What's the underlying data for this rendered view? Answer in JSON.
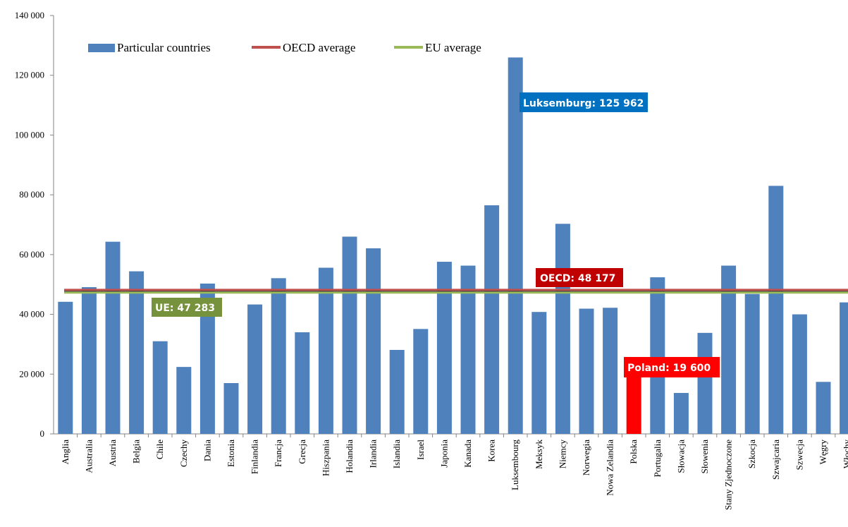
{
  "chart_data": {
    "type": "bar",
    "categories": [
      "Anglia",
      "Australia",
      "Austria",
      "Belgia",
      "Chile",
      "Czechy",
      "Dania",
      "Estonia",
      "Finlandia",
      "Francja",
      "Grecja",
      "Hiszpania",
      "Holandia",
      "Irlandia",
      "Islandia",
      "Israel",
      "Japonia",
      "Kanada",
      "Korea",
      "Luksembourg",
      "Meksyk",
      "Niemcy",
      "Norwegia",
      "Nowa Zelandia",
      "Polska",
      "Portugalia",
      "Słowacja",
      "Słowenia",
      "Stany Zjednoczone",
      "Szkocja",
      "Szwajcaria",
      "Szwecja",
      "Węgry",
      "Włochy"
    ],
    "series": [
      {
        "name": "Particular countries",
        "color": "#4f81bd",
        "values": [
          44200,
          49100,
          64300,
          54400,
          31000,
          22400,
          50300,
          17000,
          43300,
          52100,
          34000,
          55600,
          66000,
          62100,
          28100,
          35100,
          57600,
          56300,
          76500,
          125962,
          40800,
          70300,
          41900,
          42200,
          19600,
          52400,
          13700,
          33800,
          56300,
          46800,
          83000,
          40000,
          17400,
          44000
        ]
      }
    ],
    "highlight": {
      "category": "Polska",
      "color": "#ff0000"
    },
    "reference_lines": [
      {
        "name": "OECD average",
        "value": 48177,
        "color": "#c0504d"
      },
      {
        "name": "EU average",
        "value": 47283,
        "color": "#9bbb59"
      }
    ],
    "ylim": [
      0,
      140000
    ],
    "yticks": [
      0,
      20000,
      40000,
      60000,
      80000,
      100000,
      120000,
      140000
    ],
    "ytick_labels": [
      "0",
      "20 000",
      "40 000",
      "60 000",
      "80 000",
      "100 000",
      "120 000",
      "140 000"
    ],
    "grid": false,
    "legend_position": "top-left",
    "title": "",
    "xlabel": "",
    "ylabel": ""
  },
  "legend": {
    "bars_label": "Particular countries",
    "oecd_label": "OECD average",
    "eu_label": "EU average"
  },
  "callouts": {
    "luxembourg": {
      "text": "Luksemburg: 125 962",
      "color": "#0070c0"
    },
    "oecd": {
      "text": "OECD: 48 177",
      "color": "#c00000"
    },
    "ue": {
      "text": "UE: 47 283",
      "color": "#76923c"
    },
    "poland": {
      "text": "Poland: 19 600",
      "color": "#ff0000"
    }
  }
}
